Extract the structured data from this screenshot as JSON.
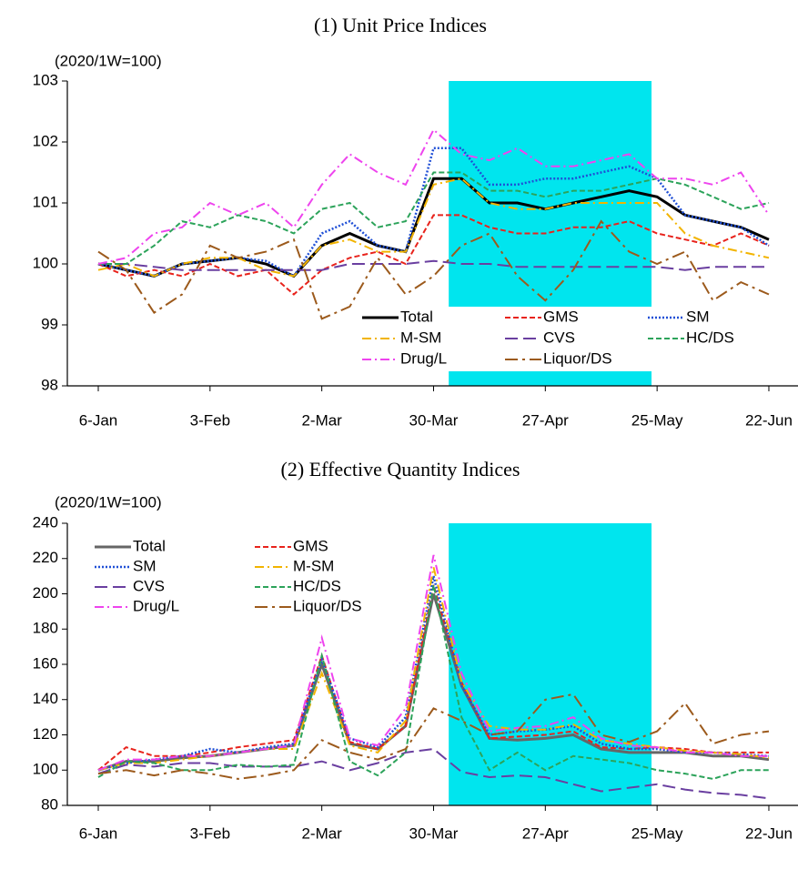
{
  "chart_data": [
    {
      "type": "line",
      "title": "(1) Unit Price Indices",
      "y_unit": "(2020/1W=100)",
      "x": [
        0,
        7,
        14,
        21,
        28,
        35,
        42,
        49,
        56,
        63,
        70,
        77,
        84,
        91,
        98,
        105,
        112,
        119,
        126,
        133,
        140,
        147,
        154,
        161,
        168
      ],
      "xlim": [
        -7.75,
        175.3
      ],
      "xticks": [
        {
          "value": 0,
          "label": "6-Jan"
        },
        {
          "value": 28,
          "label": "3-Feb"
        },
        {
          "value": 56,
          "label": "2-Mar"
        },
        {
          "value": 84,
          "label": "30-Mar"
        },
        {
          "value": 112,
          "label": "27-Apr"
        },
        {
          "value": 140,
          "label": "25-May"
        },
        {
          "value": 168,
          "label": "22-Jun"
        }
      ],
      "ylim": [
        98,
        103
      ],
      "yticks": [
        98,
        99,
        100,
        101,
        102,
        103
      ],
      "shaded_span": [
        87.8,
        138.6
      ],
      "shade_color": "#00e5ee",
      "legend": "lower center",
      "legend_background": "#ffffff",
      "series": [
        {
          "name": "Total",
          "color": "#000000",
          "style": "solid",
          "values": [
            100,
            99.9,
            99.8,
            100.0,
            100.05,
            100.1,
            100.0,
            99.8,
            100.3,
            100.5,
            100.3,
            100.2,
            101.4,
            101.4,
            101.0,
            101.0,
            100.9,
            101.0,
            101.1,
            101.2,
            101.1,
            100.8,
            100.7,
            100.6,
            100.4
          ]
        },
        {
          "name": "GMS",
          "color": "#e8231c",
          "style": "dashed",
          "values": [
            100,
            99.8,
            99.9,
            99.8,
            100.0,
            99.8,
            99.9,
            99.5,
            99.9,
            100.1,
            100.2,
            100.0,
            100.8,
            100.8,
            100.6,
            100.5,
            100.5,
            100.6,
            100.6,
            100.7,
            100.5,
            100.4,
            100.3,
            100.5,
            100.3
          ]
        },
        {
          "name": "SM",
          "color": "#1f4fd6",
          "style": "dotted",
          "values": [
            100,
            99.9,
            99.8,
            100.0,
            100.05,
            100.1,
            100.05,
            99.8,
            100.5,
            100.7,
            100.3,
            100.2,
            101.9,
            101.9,
            101.3,
            101.3,
            101.4,
            101.4,
            101.5,
            101.6,
            101.4,
            100.8,
            100.7,
            100.6,
            100.3
          ]
        },
        {
          "name": "M-SM",
          "color": "#f2b400",
          "style": "dashdot",
          "values": [
            99.9,
            100.0,
            99.8,
            100.0,
            100.1,
            100.1,
            99.9,
            99.8,
            100.3,
            100.4,
            100.2,
            100.2,
            101.3,
            101.4,
            101.0,
            100.9,
            100.9,
            101.0,
            101.0,
            101.0,
            101.0,
            100.5,
            100.3,
            100.2,
            100.1
          ]
        },
        {
          "name": "CVS",
          "color": "#6a3fa0",
          "style": "longdash",
          "values": [
            100,
            100,
            99.95,
            99.9,
            99.9,
            99.9,
            99.9,
            99.9,
            99.9,
            100.0,
            100.0,
            100.0,
            100.05,
            100.0,
            100.0,
            99.95,
            99.95,
            99.95,
            99.95,
            99.95,
            99.95,
            99.9,
            99.95,
            99.95,
            99.95
          ]
        },
        {
          "name": "HC/DS",
          "color": "#2ca35a",
          "style": "dashed",
          "values": [
            100,
            100.0,
            100.3,
            100.7,
            100.6,
            100.8,
            100.7,
            100.5,
            100.9,
            101.0,
            100.6,
            100.7,
            101.5,
            101.5,
            101.2,
            101.2,
            101.1,
            101.2,
            101.2,
            101.3,
            101.4,
            101.3,
            101.1,
            100.9,
            101.0
          ]
        },
        {
          "name": "Drug/L",
          "color": "#ee44ee",
          "style": "dashdot",
          "values": [
            100,
            100.1,
            100.5,
            100.6,
            101.0,
            100.8,
            101.0,
            100.6,
            101.3,
            101.8,
            101.5,
            101.3,
            102.2,
            101.8,
            101.7,
            101.9,
            101.6,
            101.6,
            101.7,
            101.8,
            101.4,
            101.4,
            101.3,
            101.5,
            100.8
          ]
        },
        {
          "name": "Liquor/DS",
          "color": "#9c5a1c",
          "style": "longdashdot",
          "values": [
            100.2,
            99.9,
            99.2,
            99.5,
            100.3,
            100.1,
            100.2,
            100.4,
            99.1,
            99.3,
            100.1,
            99.5,
            99.8,
            100.3,
            100.5,
            99.8,
            99.4,
            99.9,
            100.7,
            100.2,
            100.0,
            100.2,
            99.4,
            99.7,
            99.5
          ]
        }
      ]
    },
    {
      "type": "line",
      "title": "(2) Effective Quantity Indices",
      "y_unit": "(2020/1W=100)",
      "x": [
        0,
        7,
        14,
        21,
        28,
        35,
        42,
        49,
        56,
        63,
        70,
        77,
        84,
        91,
        98,
        105,
        112,
        119,
        126,
        133,
        140,
        147,
        154,
        161,
        168
      ],
      "xlim": [
        -7.75,
        175.3
      ],
      "xticks": [
        {
          "value": 0,
          "label": "6-Jan"
        },
        {
          "value": 28,
          "label": "3-Feb"
        },
        {
          "value": 56,
          "label": "2-Mar"
        },
        {
          "value": 84,
          "label": "30-Mar"
        },
        {
          "value": 112,
          "label": "27-Apr"
        },
        {
          "value": 140,
          "label": "25-May"
        },
        {
          "value": 168,
          "label": "22-Jun"
        }
      ],
      "ylim": [
        80,
        240
      ],
      "yticks": [
        80,
        100,
        120,
        140,
        160,
        180,
        200,
        220,
        240
      ],
      "shaded_span": [
        87.8,
        138.6
      ],
      "shade_color": "#00e5ee",
      "legend": "upper left",
      "series": [
        {
          "name": "Total",
          "color": "#666666",
          "style": "solid",
          "values": [
            100,
            105,
            105,
            107,
            108,
            110,
            112,
            114,
            160,
            115,
            112,
            125,
            200,
            148,
            118,
            117,
            118,
            120,
            112,
            110,
            110,
            110,
            108,
            108,
            106
          ]
        },
        {
          "name": "GMS",
          "color": "#e8231c",
          "style": "dashed",
          "values": [
            100,
            113,
            108,
            108,
            110,
            113,
            115,
            117,
            165,
            116,
            112,
            125,
            205,
            150,
            118,
            119,
            120,
            122,
            113,
            112,
            113,
            112,
            110,
            110,
            110
          ]
        },
        {
          "name": "SM",
          "color": "#1f4fd6",
          "style": "dotted",
          "values": [
            100,
            104,
            106,
            108,
            112,
            110,
            113,
            115,
            163,
            118,
            113,
            130,
            210,
            148,
            120,
            122,
            123,
            125,
            115,
            112,
            112,
            110,
            110,
            109,
            108
          ]
        },
        {
          "name": "M-SM",
          "color": "#f2b400",
          "style": "dashdot",
          "values": [
            100,
            104,
            104,
            106,
            108,
            110,
            112,
            112,
            155,
            114,
            110,
            128,
            215,
            150,
            125,
            123,
            123,
            126,
            117,
            115,
            113,
            111,
            110,
            109,
            107
          ]
        },
        {
          "name": "CVS",
          "color": "#6a3fa0",
          "style": "longdash",
          "values": [
            98,
            103,
            102,
            104,
            104,
            102,
            102,
            102,
            105,
            100,
            104,
            110,
            112,
            99,
            96,
            97,
            96,
            92,
            88,
            90,
            92,
            89,
            87,
            86,
            84
          ]
        },
        {
          "name": "HC/DS",
          "color": "#2ca35a",
          "style": "dashed",
          "values": [
            96,
            105,
            104,
            100,
            100,
            103,
            102,
            103,
            165,
            105,
            97,
            110,
            205,
            130,
            100,
            110,
            100,
            108,
            106,
            104,
            100,
            98,
            95,
            100,
            100
          ]
        },
        {
          "name": "Drug/L",
          "color": "#ee44ee",
          "style": "dashdot",
          "values": [
            100,
            106,
            106,
            108,
            108,
            110,
            112,
            114,
            175,
            118,
            114,
            135,
            222,
            155,
            122,
            124,
            125,
            130,
            118,
            114,
            113,
            110,
            110,
            108,
            108
          ]
        },
        {
          "name": "Liquor/DS",
          "color": "#9c5a1c",
          "style": "longdashdot",
          "values": [
            98,
            100,
            97,
            100,
            98,
            95,
            97,
            100,
            117,
            110,
            106,
            112,
            135,
            128,
            120,
            122,
            140,
            143,
            120,
            116,
            122,
            138,
            115,
            120,
            122
          ]
        }
      ]
    }
  ]
}
